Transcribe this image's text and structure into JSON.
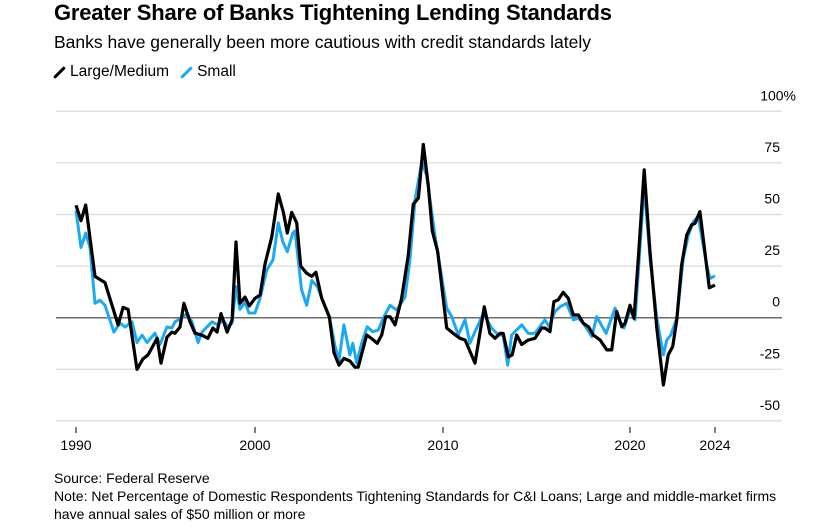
{
  "header": {
    "title": "Greater Share of Banks Tightening Lending Standards",
    "subtitle": "Banks have generally been more cautious with credit standards lately"
  },
  "legend": [
    {
      "label": "Large/Medium",
      "color": "#000000"
    },
    {
      "label": "Small",
      "color": "#1ba9f5"
    }
  ],
  "footer": {
    "source": "Source: Federal Reserve",
    "note": "Note: Net Percentage of Domestic Respondents Tightening Standards for C&I Loans; Large and middle-market firms have annual sales of $50 million or more"
  },
  "chart_data": {
    "type": "line",
    "title": "Greater Share of Banks Tightening Lending Standards",
    "xlabel": "",
    "ylabel": "",
    "ylim": [
      -50,
      100
    ],
    "xlim": [
      1990,
      2024
    ],
    "grid": true,
    "legend_position": "top-left",
    "x_ticks": [
      1990,
      2000,
      2010,
      2020,
      2024
    ],
    "x_tick_labels": [
      "1990",
      "2000",
      "2010",
      "2020",
      "2024"
    ],
    "y_ticks": [
      100,
      75,
      50,
      25,
      0,
      -25,
      -50
    ],
    "y_tick_labels": [
      "100%",
      "75",
      "50",
      "25",
      "0",
      "-25",
      "-50"
    ],
    "series": [
      {
        "name": "Large/Medium",
        "color": "#000000",
        "points": [
          [
            1990.0,
            54.5
          ],
          [
            1990.28,
            47
          ],
          [
            1990.54,
            54.6
          ],
          [
            1991.06,
            20
          ],
          [
            1991.62,
            17
          ],
          [
            1992.35,
            -3.5
          ],
          [
            1992.63,
            5
          ],
          [
            1992.91,
            4
          ],
          [
            1993.41,
            -25
          ],
          [
            1993.74,
            -20
          ],
          [
            1994.02,
            -18
          ],
          [
            1994.53,
            -10
          ],
          [
            1994.75,
            -22
          ],
          [
            1995.08,
            -9.5
          ],
          [
            1995.36,
            -7
          ],
          [
            1995.53,
            -7.5
          ],
          [
            1995.81,
            -4.5
          ],
          [
            1996.03,
            7
          ],
          [
            1996.37,
            -2
          ],
          [
            1996.65,
            -7.5
          ],
          [
            1997.04,
            -8.5
          ],
          [
            1997.37,
            -10
          ],
          [
            1997.65,
            -5
          ],
          [
            1997.88,
            -7
          ],
          [
            1998.1,
            2
          ],
          [
            1998.44,
            -7
          ],
          [
            1998.72,
            -1
          ],
          [
            1998.94,
            36.7
          ],
          [
            1999.16,
            7
          ],
          [
            1999.44,
            10
          ],
          [
            1999.68,
            5.7
          ],
          [
            2000.0,
            9.4
          ],
          [
            2000.27,
            11
          ],
          [
            2000.53,
            26
          ],
          [
            2000.89,
            39
          ],
          [
            2001.24,
            60
          ],
          [
            2001.51,
            51
          ],
          [
            2001.72,
            41
          ],
          [
            2001.95,
            51
          ],
          [
            2002.22,
            46
          ],
          [
            2002.43,
            25
          ],
          [
            2002.75,
            21.5
          ],
          [
            2003.02,
            20
          ],
          [
            2003.24,
            22
          ],
          [
            2003.55,
            9.4
          ],
          [
            2003.95,
            0.5
          ],
          [
            2004.2,
            -17
          ],
          [
            2004.47,
            -23
          ],
          [
            2004.73,
            -19.7
          ],
          [
            2005.05,
            -21
          ],
          [
            2005.32,
            -24
          ],
          [
            2005.49,
            -24
          ],
          [
            2005.94,
            -8.4
          ],
          [
            2006.26,
            -10.5
          ],
          [
            2006.5,
            -12.4
          ],
          [
            2006.74,
            -8.4
          ],
          [
            2006.95,
            0.5
          ],
          [
            2007.18,
            0.5
          ],
          [
            2007.45,
            -3.5
          ],
          [
            2007.8,
            9.4
          ],
          [
            2008.15,
            30
          ],
          [
            2008.42,
            55
          ],
          [
            2008.69,
            58
          ],
          [
            2008.95,
            84
          ],
          [
            2009.22,
            64
          ],
          [
            2009.43,
            42
          ],
          [
            2009.72,
            32
          ],
          [
            2010.2,
            -5
          ],
          [
            2010.55,
            -7.6
          ],
          [
            2010.91,
            -10
          ],
          [
            2011.18,
            -10.8
          ],
          [
            2011.71,
            -22
          ],
          [
            2012.21,
            5.3
          ],
          [
            2012.51,
            -7.6
          ],
          [
            2012.78,
            -10
          ],
          [
            2013.05,
            -7.6
          ],
          [
            2013.22,
            -7.6
          ],
          [
            2013.49,
            -19
          ],
          [
            2013.7,
            -18
          ],
          [
            2013.94,
            -8.4
          ],
          [
            2014.21,
            -13
          ],
          [
            2014.56,
            -10.8
          ],
          [
            2014.92,
            -10
          ],
          [
            2015.28,
            -5
          ],
          [
            2015.45,
            -5
          ],
          [
            2015.72,
            -6.8
          ],
          [
            2015.93,
            7.8
          ],
          [
            2016.16,
            8.6
          ],
          [
            2016.43,
            12.3
          ],
          [
            2016.7,
            9.4
          ],
          [
            2016.97,
            1.3
          ],
          [
            2017.24,
            1.3
          ],
          [
            2017.51,
            -2.7
          ],
          [
            2017.78,
            -4.4
          ],
          [
            2018.04,
            -8.4
          ],
          [
            2018.4,
            -10.8
          ],
          [
            2018.76,
            -15.6
          ],
          [
            2019.02,
            -15.6
          ],
          [
            2019.29,
            3
          ],
          [
            2019.56,
            -4.4
          ],
          [
            2019.73,
            -2.7
          ],
          [
            2020.0,
            6
          ],
          [
            2020.19,
            -0.3
          ],
          [
            2020.39,
            28.8
          ],
          [
            2020.67,
            71.6
          ],
          [
            2020.94,
            32
          ],
          [
            2021.26,
            -5
          ],
          [
            2021.57,
            -32.6
          ],
          [
            2021.8,
            -18
          ],
          [
            2022.01,
            -14
          ],
          [
            2022.2,
            -1
          ],
          [
            2022.43,
            25.5
          ],
          [
            2022.67,
            40
          ],
          [
            2022.9,
            45
          ],
          [
            2023.06,
            45.7
          ],
          [
            2023.29,
            51.4
          ],
          [
            2023.73,
            14.5
          ],
          [
            2024.0,
            15.8
          ]
        ]
      },
      {
        "name": "Small",
        "color": "#1ba9f5",
        "points": [
          [
            1990.0,
            52
          ],
          [
            1990.28,
            34
          ],
          [
            1990.54,
            41
          ],
          [
            1990.78,
            34
          ],
          [
            1991.06,
            7
          ],
          [
            1991.34,
            8.5
          ],
          [
            1991.62,
            6
          ],
          [
            1992.12,
            -7
          ],
          [
            1992.46,
            -2.5
          ],
          [
            1992.74,
            -4.5
          ],
          [
            1993.13,
            -2
          ],
          [
            1993.41,
            -12
          ],
          [
            1993.69,
            -8.5
          ],
          [
            1993.97,
            -12
          ],
          [
            1994.41,
            -7.5
          ],
          [
            1994.69,
            -13
          ],
          [
            1995.08,
            -4.5
          ],
          [
            1995.36,
            -5
          ],
          [
            1995.53,
            -2
          ],
          [
            1995.92,
            0
          ],
          [
            1996.2,
            2
          ],
          [
            1996.48,
            -2
          ],
          [
            1996.82,
            -12
          ],
          [
            1997.04,
            -7
          ],
          [
            1997.6,
            -2
          ],
          [
            1997.93,
            -3.5
          ],
          [
            1998.21,
            -1
          ],
          [
            1998.49,
            -4.5
          ],
          [
            1998.72,
            -2.5
          ],
          [
            1998.94,
            15
          ],
          [
            1999.16,
            4
          ],
          [
            1999.44,
            7.5
          ],
          [
            1999.66,
            2.3
          ],
          [
            2000.0,
            2.3
          ],
          [
            2000.27,
            9.5
          ],
          [
            2000.62,
            23
          ],
          [
            2000.96,
            28
          ],
          [
            2001.24,
            46
          ],
          [
            2001.47,
            37
          ],
          [
            2001.72,
            32
          ],
          [
            2002.01,
            41
          ],
          [
            2002.13,
            42
          ],
          [
            2002.48,
            13.4
          ],
          [
            2002.75,
            6
          ],
          [
            2003.02,
            18
          ],
          [
            2003.32,
            15
          ],
          [
            2003.63,
            7.8
          ],
          [
            2003.99,
            -1
          ],
          [
            2004.26,
            -14
          ],
          [
            2004.47,
            -20.5
          ],
          [
            2004.73,
            -3.5
          ],
          [
            2005.05,
            -18
          ],
          [
            2005.2,
            -12.4
          ],
          [
            2005.41,
            -22
          ],
          [
            2005.67,
            -12.4
          ],
          [
            2005.97,
            -4.4
          ],
          [
            2006.26,
            -6.8
          ],
          [
            2006.56,
            -6
          ],
          [
            2006.82,
            -0.3
          ],
          [
            2007.18,
            6
          ],
          [
            2007.54,
            3.7
          ],
          [
            2007.98,
            10
          ],
          [
            2008.24,
            28
          ],
          [
            2008.51,
            57
          ],
          [
            2008.87,
            75.6
          ],
          [
            2009.13,
            69
          ],
          [
            2009.57,
            40
          ],
          [
            2010.2,
            4.6
          ],
          [
            2010.47,
            0.5
          ],
          [
            2010.82,
            -8.4
          ],
          [
            2011.18,
            -1
          ],
          [
            2011.44,
            -12.4
          ],
          [
            2011.71,
            -6.8
          ],
          [
            2012.16,
            2
          ],
          [
            2012.6,
            -5
          ],
          [
            2012.96,
            -8.4
          ],
          [
            2013.22,
            -8.4
          ],
          [
            2013.46,
            -23
          ],
          [
            2013.67,
            -8.4
          ],
          [
            2014.21,
            -3.5
          ],
          [
            2014.56,
            -7.6
          ],
          [
            2014.92,
            -7.6
          ],
          [
            2015.45,
            -1
          ],
          [
            2015.67,
            -4.4
          ],
          [
            2015.99,
            3
          ],
          [
            2016.26,
            5.3
          ],
          [
            2016.61,
            7
          ],
          [
            2016.97,
            -1
          ],
          [
            2017.24,
            -0.3
          ],
          [
            2017.51,
            -2.7
          ],
          [
            2017.96,
            -9.2
          ],
          [
            2018.22,
            0.5
          ],
          [
            2018.72,
            -7.6
          ],
          [
            2019.2,
            4.6
          ],
          [
            2019.47,
            -2
          ],
          [
            2019.68,
            -5
          ],
          [
            2020.0,
            3.7
          ],
          [
            2020.24,
            -1
          ],
          [
            2020.44,
            30
          ],
          [
            2020.67,
            64
          ],
          [
            2020.94,
            28.8
          ],
          [
            2021.26,
            -0.3
          ],
          [
            2021.57,
            -18
          ],
          [
            2021.73,
            -10.8
          ],
          [
            2021.92,
            -8.4
          ],
          [
            2022.2,
            -0.3
          ],
          [
            2022.51,
            28.8
          ],
          [
            2022.75,
            40
          ],
          [
            2022.98,
            46.5
          ],
          [
            2023.21,
            49
          ],
          [
            2023.61,
            25.5
          ],
          [
            2023.76,
            19
          ],
          [
            2024.0,
            20.3
          ]
        ]
      }
    ]
  }
}
